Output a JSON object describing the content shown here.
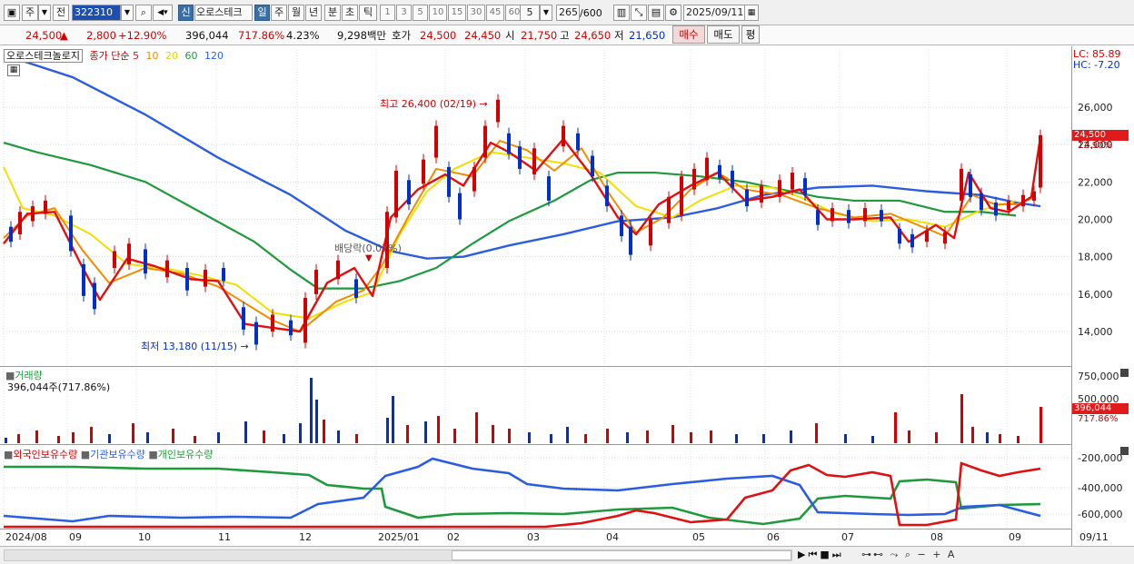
{
  "toolbar": {
    "code": "322310",
    "freq_day": "주",
    "freq_prev": "전",
    "sin": "신",
    "stock_name": "오로스테크",
    "periods": [
      "일",
      "주",
      "월",
      "년",
      "분",
      "초",
      "틱"
    ],
    "minute_buttons": [
      "1",
      "3",
      "5",
      "10",
      "15",
      "30",
      "45",
      "60"
    ],
    "count_value": "5",
    "bar_count": "265",
    "bar_total": "/600",
    "date": "2025/09/11"
  },
  "quote": {
    "price": "24,500",
    "change": "2,800",
    "change_pct": "+12.90%",
    "volume": "396,044",
    "volume_ratio": "717.86%",
    "turnover": "4.23%",
    "amount": "9,298백만",
    "hoga_label": "호가",
    "ask": "24,500",
    "bid": "24,450",
    "open_label": "시",
    "open": "21,750",
    "high_label": "고",
    "high": "24,650",
    "low_label": "저",
    "low": "21,650",
    "buy": "매수",
    "sell": "매도",
    "eval": "평"
  },
  "legend": {
    "name": "오로스테크놀로지",
    "price_ma": "종가 단순",
    "ma_periods": [
      "5",
      "10",
      "20",
      "60",
      "120"
    ]
  },
  "annotations": {
    "high": "최고 26,400 (02/19)",
    "low": "최저 13,180 (11/15)",
    "dividend": "배당락(0.07%)"
  },
  "right_labels": {
    "lc": "LC: 85.89",
    "hc": "HC: -7.20",
    "price_tag": "24,500",
    "pct_tag": "12.90%",
    "vol_tag": "396,044",
    "vol_pct_tag": "717.86%"
  },
  "volume_panel": {
    "title": "거래량",
    "value": "396,044주(717.86%)"
  },
  "holding_panel": {
    "series": [
      "외국인보유수량",
      "기관보유수량",
      "개인보유수량"
    ]
  },
  "colors": {
    "up": "#d20000",
    "down": "#0030c8",
    "ma5": "#e01010",
    "ma10": "#f08c00",
    "ma20": "#f0e000",
    "ma60": "#1e9a3c",
    "ma120": "#2a5de0"
  },
  "chart_data": {
    "type": "line",
    "price_axis": [
      "26,000",
      "24,000",
      "22,000",
      "20,000",
      "18,000",
      "16,000",
      "14,000"
    ],
    "price_values": [
      26000,
      24000,
      22000,
      20000,
      18000,
      16000,
      14000
    ],
    "volume_axis": [
      "750,000",
      "500,000"
    ],
    "holding_axis": [
      "-200,000",
      "-400,000",
      "-600,000"
    ],
    "x_labels": [
      "2024/08",
      "09",
      "10",
      "11",
      "12",
      "2025/01",
      "02",
      "03",
      "04",
      "05",
      "06",
      "07",
      "08",
      "09",
      "09/11"
    ],
    "last_close": 24500,
    "high_point": {
      "value": 26400,
      "date": "02/19"
    },
    "low_point": {
      "value": 13180,
      "date": "11/15"
    },
    "series": [
      {
        "name": "5",
        "color": "#e01010"
      },
      {
        "name": "10",
        "color": "#f08c00"
      },
      {
        "name": "20",
        "color": "#f0e000"
      },
      {
        "name": "60",
        "color": "#1e9a3c"
      },
      {
        "name": "120",
        "color": "#2a5de0"
      }
    ]
  }
}
